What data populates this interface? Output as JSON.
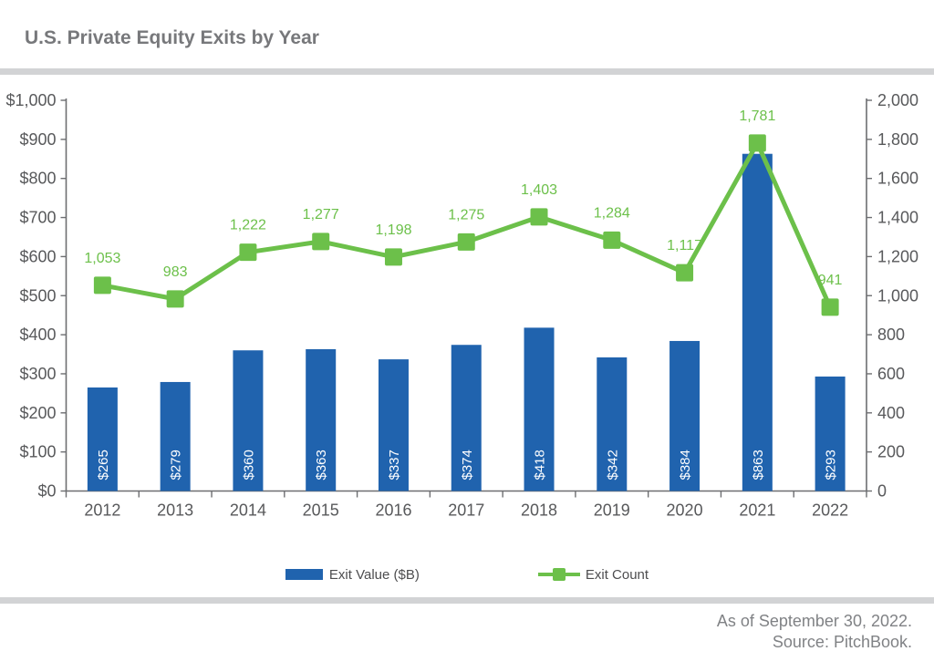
{
  "header": {
    "title": "U.S. Private Equity Exits by Year"
  },
  "chart_data": {
    "type": "bar",
    "subtype": "bar+line dual axis",
    "title": "U.S. Private Equity Exits by Year",
    "categories": [
      "2012",
      "2013",
      "2014",
      "2015",
      "2016",
      "2017",
      "2018",
      "2019",
      "2020",
      "2021",
      "2022"
    ],
    "series": [
      {
        "name": "Exit Value ($B)",
        "type": "bar",
        "axis": "left",
        "color": "#2063ae",
        "values": [
          265,
          279,
          360,
          363,
          337,
          374,
          418,
          342,
          384,
          863,
          293
        ],
        "labels": [
          "$265",
          "$279",
          "$360",
          "$363",
          "$337",
          "$374",
          "$418",
          "$342",
          "$384",
          "$863",
          "$293"
        ],
        "label_color": "#ffffff"
      },
      {
        "name": "Exit Count",
        "type": "line",
        "axis": "right",
        "color": "#6cc04a",
        "values": [
          1053,
          983,
          1222,
          1277,
          1198,
          1275,
          1403,
          1284,
          1117,
          1781,
          941
        ],
        "labels": [
          "1,053",
          "983",
          "1,222",
          "1,277",
          "1,198",
          "1,275",
          "1,403",
          "1,284",
          "1,117",
          "1,781",
          "941"
        ]
      }
    ],
    "left_axis": {
      "min": 0,
      "max": 1000,
      "step": 100,
      "tick_labels": [
        "$0",
        "$100",
        "$200",
        "$300",
        "$400",
        "$500",
        "$600",
        "$700",
        "$800",
        "$900",
        "$1,000"
      ]
    },
    "right_axis": {
      "min": 0,
      "max": 2000,
      "step": 200,
      "tick_labels": [
        "0",
        "200",
        "400",
        "600",
        "800",
        "1,000",
        "1,200",
        "1,400",
        "1,600",
        "1,800",
        "2,000"
      ]
    },
    "grid": false,
    "legend_position": "bottom",
    "axis_color": "#6d6e71",
    "tick_label_color": "#58595b"
  },
  "legend": {
    "items": [
      {
        "label": "Exit Value ($B)"
      },
      {
        "label": "Exit Count"
      }
    ]
  },
  "footer": {
    "line1": "As of September 30, 2022.",
    "line2": "Source: PitchBook."
  }
}
